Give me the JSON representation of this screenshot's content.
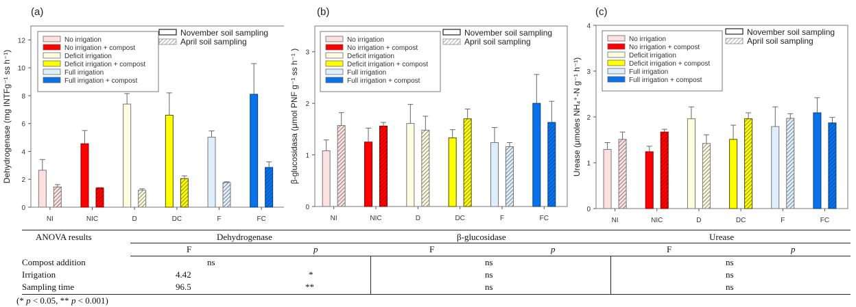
{
  "legend": {
    "treatments": [
      {
        "label": "No irrigation",
        "color": "#fde0e0"
      },
      {
        "label": "No irrigation + compost",
        "color": "#ff0000"
      },
      {
        "label": "Deficit irrigation",
        "color": "#fffde0"
      },
      {
        "label": "Deficit irrigation + compost",
        "color": "#ffff00"
      },
      {
        "label": "Full irrigation",
        "color": "#dfeefc"
      },
      {
        "label": "Full irrigation + compost",
        "color": "#0a72e8"
      }
    ],
    "sampling": [
      {
        "label": "November soil sampling",
        "pattern": "solid"
      },
      {
        "label": "April soil sampling",
        "pattern": "hatched"
      }
    ]
  },
  "chart_data": [
    {
      "type": "bar",
      "panel": "(a)",
      "title": "",
      "xlabel": "",
      "ylabel": "Dehydrogenase (mg INTFg⁻¹ ss h⁻¹)",
      "ylim": [
        0,
        13
      ],
      "yticks": [
        0,
        2,
        4,
        6,
        8,
        10,
        12
      ],
      "categories": [
        "NI",
        "NIC",
        "D",
        "DC",
        "F",
        "FC"
      ],
      "series": [
        {
          "name": "November soil sampling",
          "values": [
            2.65,
            4.55,
            7.4,
            6.6,
            5.02,
            8.1
          ],
          "error": [
            0.77,
            0.95,
            0.75,
            1.6,
            0.45,
            2.2
          ]
        },
        {
          "name": "April soil sampling",
          "values": [
            1.45,
            1.38,
            1.22,
            2.05,
            1.77,
            2.85
          ],
          "error": [
            0.17,
            0.03,
            0.1,
            0.2,
            0.05,
            0.4
          ]
        }
      ],
      "legend_position": "top-left"
    },
    {
      "type": "bar",
      "panel": "(b)",
      "title": "",
      "xlabel": "",
      "ylabel": "β-glucosidasa  (μmol PNF g⁻¹ ss h⁻¹ )",
      "ylim": [
        0,
        3.5
      ],
      "yticks": [
        0,
        1,
        2,
        3
      ],
      "categories": [
        "NI",
        "NIC",
        "D",
        "DC",
        "F",
        "FC"
      ],
      "series": [
        {
          "name": "November soil sampling",
          "values": [
            1.08,
            1.25,
            1.61,
            1.33,
            1.24,
            2.0
          ],
          "error": [
            0.21,
            0.27,
            0.37,
            0.16,
            0.29,
            0.56
          ]
        },
        {
          "name": "April soil sampling",
          "values": [
            1.57,
            1.56,
            1.48,
            1.7,
            1.16,
            1.63
          ],
          "error": [
            0.25,
            0.07,
            0.27,
            0.19,
            0.08,
            0.41
          ]
        }
      ],
      "legend_position": "top-left"
    },
    {
      "type": "bar",
      "panel": "(c)",
      "title": "",
      "xlabel": "",
      "ylabel": "Urease (μmoles NH₄⁺-N g⁻¹ h⁻¹)",
      "ylim": [
        0,
        4
      ],
      "yticks": [
        0,
        1,
        2,
        3,
        4
      ],
      "categories": [
        "NI",
        "NIC",
        "D",
        "DC",
        "F",
        "FC"
      ],
      "series": [
        {
          "name": "November soil sampling",
          "values": [
            1.29,
            1.24,
            1.96,
            1.51,
            1.79,
            2.09
          ],
          "error": [
            0.15,
            0.12,
            0.26,
            0.31,
            0.43,
            0.33
          ]
        },
        {
          "name": "April soil sampling",
          "values": [
            1.51,
            1.67,
            1.42,
            1.96,
            1.97,
            1.87
          ],
          "error": [
            0.16,
            0.06,
            0.19,
            0.13,
            0.1,
            0.12
          ]
        }
      ],
      "legend_position": "top-left"
    }
  ],
  "anova": {
    "header": "ANOVA results",
    "enzymes": [
      "Dehydrogenase",
      "β-glucosidase",
      "Urease"
    ],
    "stat_f": "F",
    "stat_p": "p",
    "rows": [
      {
        "label": "Compost addition",
        "dehydrogenase": "ns",
        "glucosidase": "ns",
        "urease": "ns"
      },
      {
        "label": "Irrigation",
        "dehydrogenase_f": "4.42",
        "dehydrogenase_p": "*",
        "glucosidase": "ns",
        "urease": "ns"
      },
      {
        "label": "Sampling time",
        "dehydrogenase_f": "96.5",
        "dehydrogenase_p": "**",
        "glucosidase": "ns",
        "urease": "ns"
      }
    ],
    "footnote_parts": [
      "(* ",
      "p",
      " < 0.05, ** ",
      "p",
      " < 0.001)"
    ]
  }
}
